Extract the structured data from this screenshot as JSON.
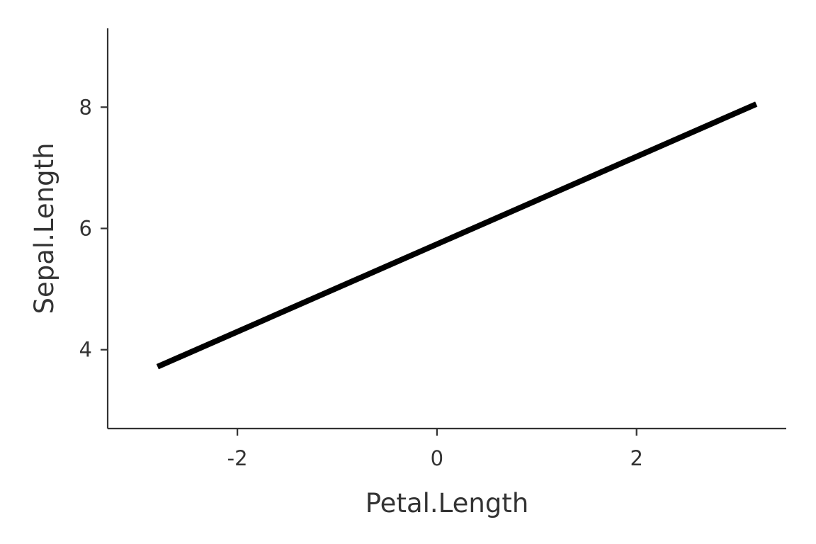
{
  "chart_data": {
    "type": "line",
    "title": "",
    "xlabel": "Petal.Length",
    "ylabel": "Sepal.Length",
    "xlim": [
      -3.3,
      3.5
    ],
    "ylim": [
      2.7,
      9.3
    ],
    "x_ticks": [
      {
        "value": -2,
        "label": "-2"
      },
      {
        "value": 0,
        "label": "0"
      },
      {
        "value": 2,
        "label": "2"
      }
    ],
    "y_ticks": [
      {
        "value": 4,
        "label": "4"
      },
      {
        "value": 6,
        "label": "6"
      },
      {
        "value": 8,
        "label": "8"
      }
    ],
    "grid": false,
    "legend": "none",
    "series": [
      {
        "color": "#000000",
        "x": [
          -2.8,
          3.2
        ],
        "y": [
          3.72,
          8.05
        ]
      }
    ]
  }
}
